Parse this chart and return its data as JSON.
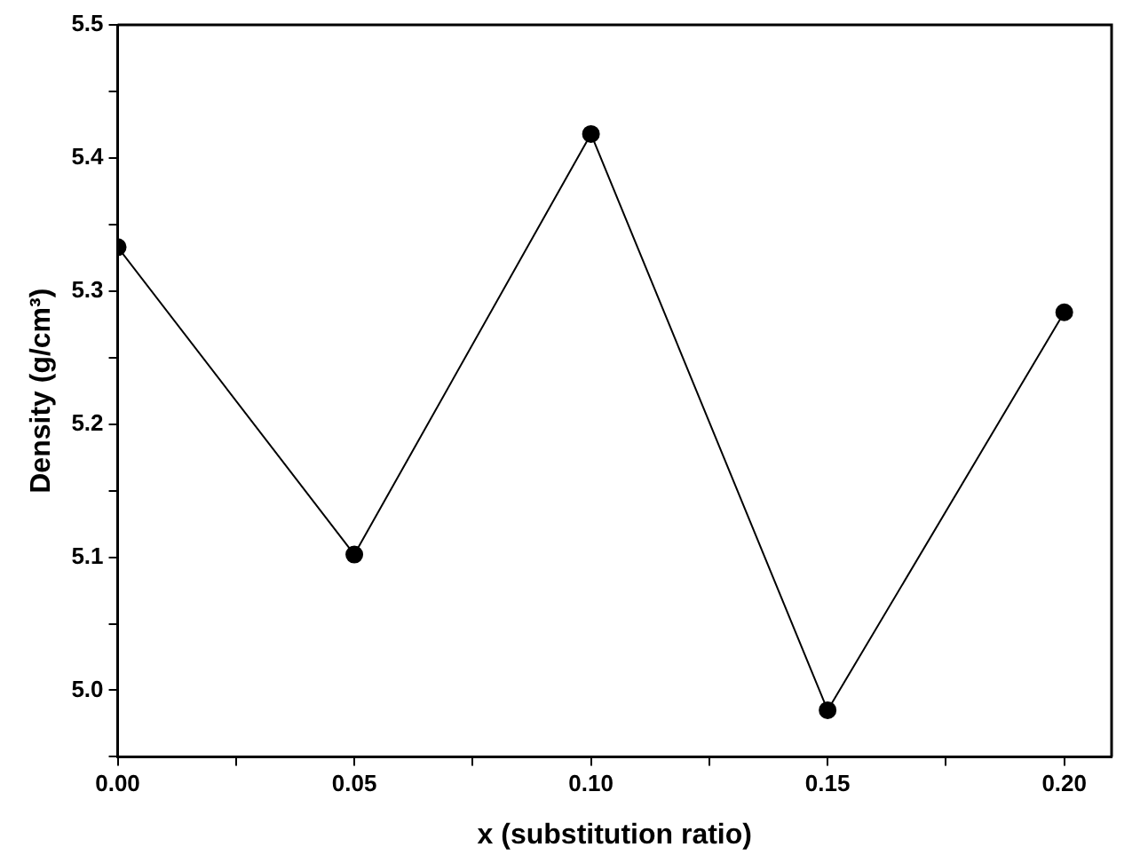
{
  "chart_data": {
    "type": "line",
    "xlabel": "x (substitution ratio)",
    "ylabel": "Density (g/cm³)",
    "x": [
      0,
      0.05,
      0.1,
      0.15,
      0.2
    ],
    "series": [
      {
        "color": "#000000",
        "values": [
          5.333,
          5.102,
          5.418,
          4.985,
          5.284
        ]
      }
    ],
    "xlim": [
      0,
      0.21
    ],
    "xticks": [
      {
        "value": 0,
        "label": "0.00"
      },
      {
        "value": 0.025,
        "label": null
      },
      {
        "value": 0.05,
        "label": "0.05"
      },
      {
        "value": 0.075,
        "label": null
      },
      {
        "value": 0.1,
        "label": "0.10"
      },
      {
        "value": 0.125,
        "label": null
      },
      {
        "value": 0.15,
        "label": "0.15"
      },
      {
        "value": 0.175,
        "label": null
      },
      {
        "value": 0.2,
        "label": "0.20"
      }
    ],
    "ylim": [
      4.95,
      5.5
    ],
    "yticks": [
      {
        "value": 4.95,
        "label": null
      },
      {
        "value": 5,
        "label": "5.0"
      },
      {
        "value": 5.05,
        "label": null
      },
      {
        "value": 5.1,
        "label": "5.1"
      },
      {
        "value": 5.15,
        "label": null
      },
      {
        "value": 5.2,
        "label": "5.2"
      },
      {
        "value": 5.25,
        "label": null
      },
      {
        "value": 5.3,
        "label": "5.3"
      },
      {
        "value": 5.35,
        "label": null
      },
      {
        "value": 5.4,
        "label": "5.4"
      },
      {
        "value": 5.45,
        "label": null
      },
      {
        "value": 5.5,
        "label": "5.5"
      }
    ],
    "grid": false,
    "legend": false,
    "marker": "circle",
    "line_style": "solid"
  }
}
